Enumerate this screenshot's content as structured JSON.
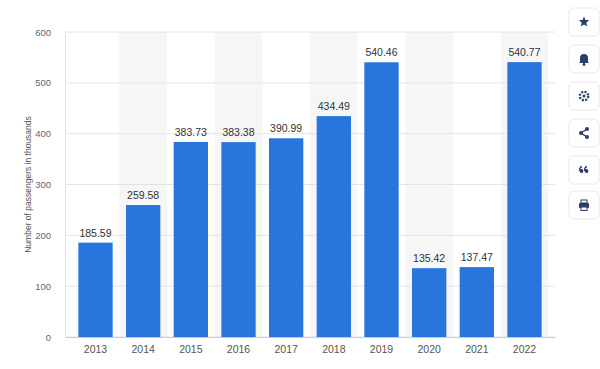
{
  "chart_data": {
    "type": "bar",
    "y_label": "Number of passengers in thousands",
    "categories": [
      "2013",
      "2014",
      "2015",
      "2016",
      "2017",
      "2018",
      "2019",
      "2020",
      "2021",
      "2022"
    ],
    "values": [
      185.59,
      259.58,
      383.73,
      383.38,
      390.99,
      434.49,
      540.46,
      135.42,
      137.47,
      540.77
    ],
    "color": "#2876dd",
    "ylim": [
      0,
      600
    ],
    "yticks": [
      0,
      100,
      200,
      300,
      400,
      500,
      600
    ],
    "grid": true,
    "data_labels": true
  }
}
